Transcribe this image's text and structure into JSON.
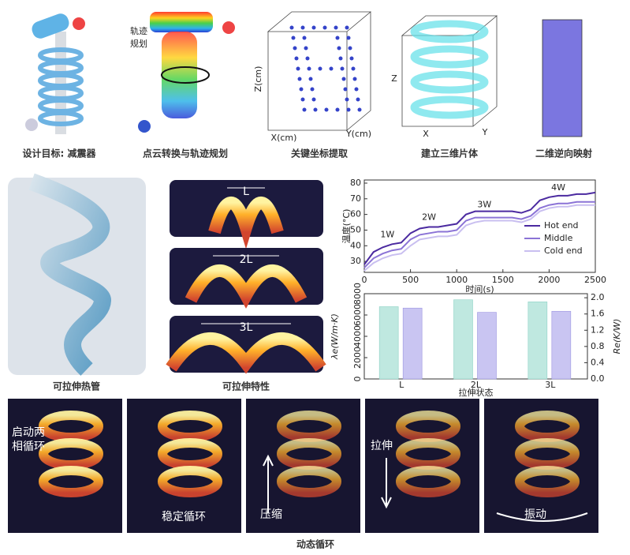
{
  "design_pipeline": [
    {
      "caption": "设计目标: 减震器"
    },
    {
      "caption": "点云转换与轨迹规划",
      "annotation": [
        "轨迹",
        "规划"
      ]
    },
    {
      "caption": "关键坐标提取",
      "axis_labels": [
        "Z(cm)",
        "X(cm)",
        "Y(cm)"
      ]
    },
    {
      "caption": "建立三维片体",
      "axis_labels": [
        "Z",
        "X",
        "Y"
      ]
    },
    {
      "caption": "二维逆向映射"
    }
  ],
  "stretchable_pipe": {
    "caption": "可拉伸热管"
  },
  "stretch_properties": {
    "caption": "可拉伸特性",
    "frames": [
      "L",
      "2L",
      "3L"
    ]
  },
  "temperature_chart": {
    "type": "line",
    "xlabel": "时间(s)",
    "ylabel": "温度(°C)",
    "xlim": [
      0,
      2500
    ],
    "xticks": [
      0,
      500,
      1000,
      1500,
      2000,
      2500
    ],
    "ylim": [
      23,
      82
    ],
    "yticks": [
      30,
      40,
      50,
      60,
      70,
      80
    ],
    "annotations": [
      {
        "text": "1W",
        "x": 250,
        "y": 47
      },
      {
        "text": "2W",
        "x": 700,
        "y": 58
      },
      {
        "text": "3W",
        "x": 1300,
        "y": 66
      },
      {
        "text": "4W",
        "x": 2100,
        "y": 77
      }
    ],
    "x": [
      0,
      100,
      200,
      300,
      400,
      500,
      600,
      700,
      800,
      900,
      1000,
      1100,
      1200,
      1300,
      1400,
      1500,
      1600,
      1700,
      1800,
      1900,
      2000,
      2100,
      2200,
      2300,
      2400,
      2500
    ],
    "series": [
      {
        "name": "Hot end",
        "color": "#4b2aa0",
        "values": [
          28,
          36,
          39,
          41,
          42,
          48,
          51,
          52,
          52,
          53,
          54,
          60,
          62,
          62,
          62,
          62,
          62,
          61,
          63,
          69,
          71,
          72,
          72,
          73,
          73,
          74
        ]
      },
      {
        "name": "Middle",
        "color": "#8b73d6",
        "values": [
          26,
          32,
          35,
          37,
          38,
          44,
          47,
          48,
          49,
          49,
          50,
          56,
          58,
          58,
          58,
          58,
          58,
          57,
          59,
          64,
          66,
          67,
          67,
          68,
          68,
          68
        ]
      },
      {
        "name": "Cold end",
        "color": "#c9bff0",
        "values": [
          24,
          29,
          32,
          34,
          35,
          40,
          44,
          45,
          46,
          46,
          47,
          53,
          55,
          56,
          56,
          56,
          56,
          55,
          57,
          62,
          64,
          65,
          65,
          66,
          66,
          66
        ]
      }
    ]
  },
  "stretch_chart": {
    "type": "bar",
    "xlabel": "拉伸状态",
    "ylabel": "λe(W/m·K)",
    "y2label": "Re(K/W)",
    "categories": [
      "L",
      "2L",
      "3L"
    ],
    "ylim": [
      0,
      8000
    ],
    "yticks": [
      0,
      2000,
      4000,
      6000,
      8000
    ],
    "y2lim": [
      0,
      2.1
    ],
    "y2ticks": [
      {
        "value": 0,
        "label": "0.0"
      },
      0.4,
      0.8,
      1.2,
      1.6,
      {
        "value": 2,
        "label": "2.0"
      }
    ],
    "series": [
      {
        "color": "#bfe8e0",
        "axis": "y2",
        "values": [
          1.78,
          1.95,
          1.9
        ]
      },
      {
        "color": "#c9c5f2",
        "values": [
          6650,
          6250,
          6350
        ]
      }
    ]
  },
  "dynamic_cycle": {
    "caption": "动态循环",
    "frames": [
      [
        "启动两",
        "相循环"
      ],
      [
        "稳定循环"
      ],
      [
        "压缩"
      ],
      [
        "拉伸"
      ],
      [
        "振动"
      ]
    ]
  }
}
